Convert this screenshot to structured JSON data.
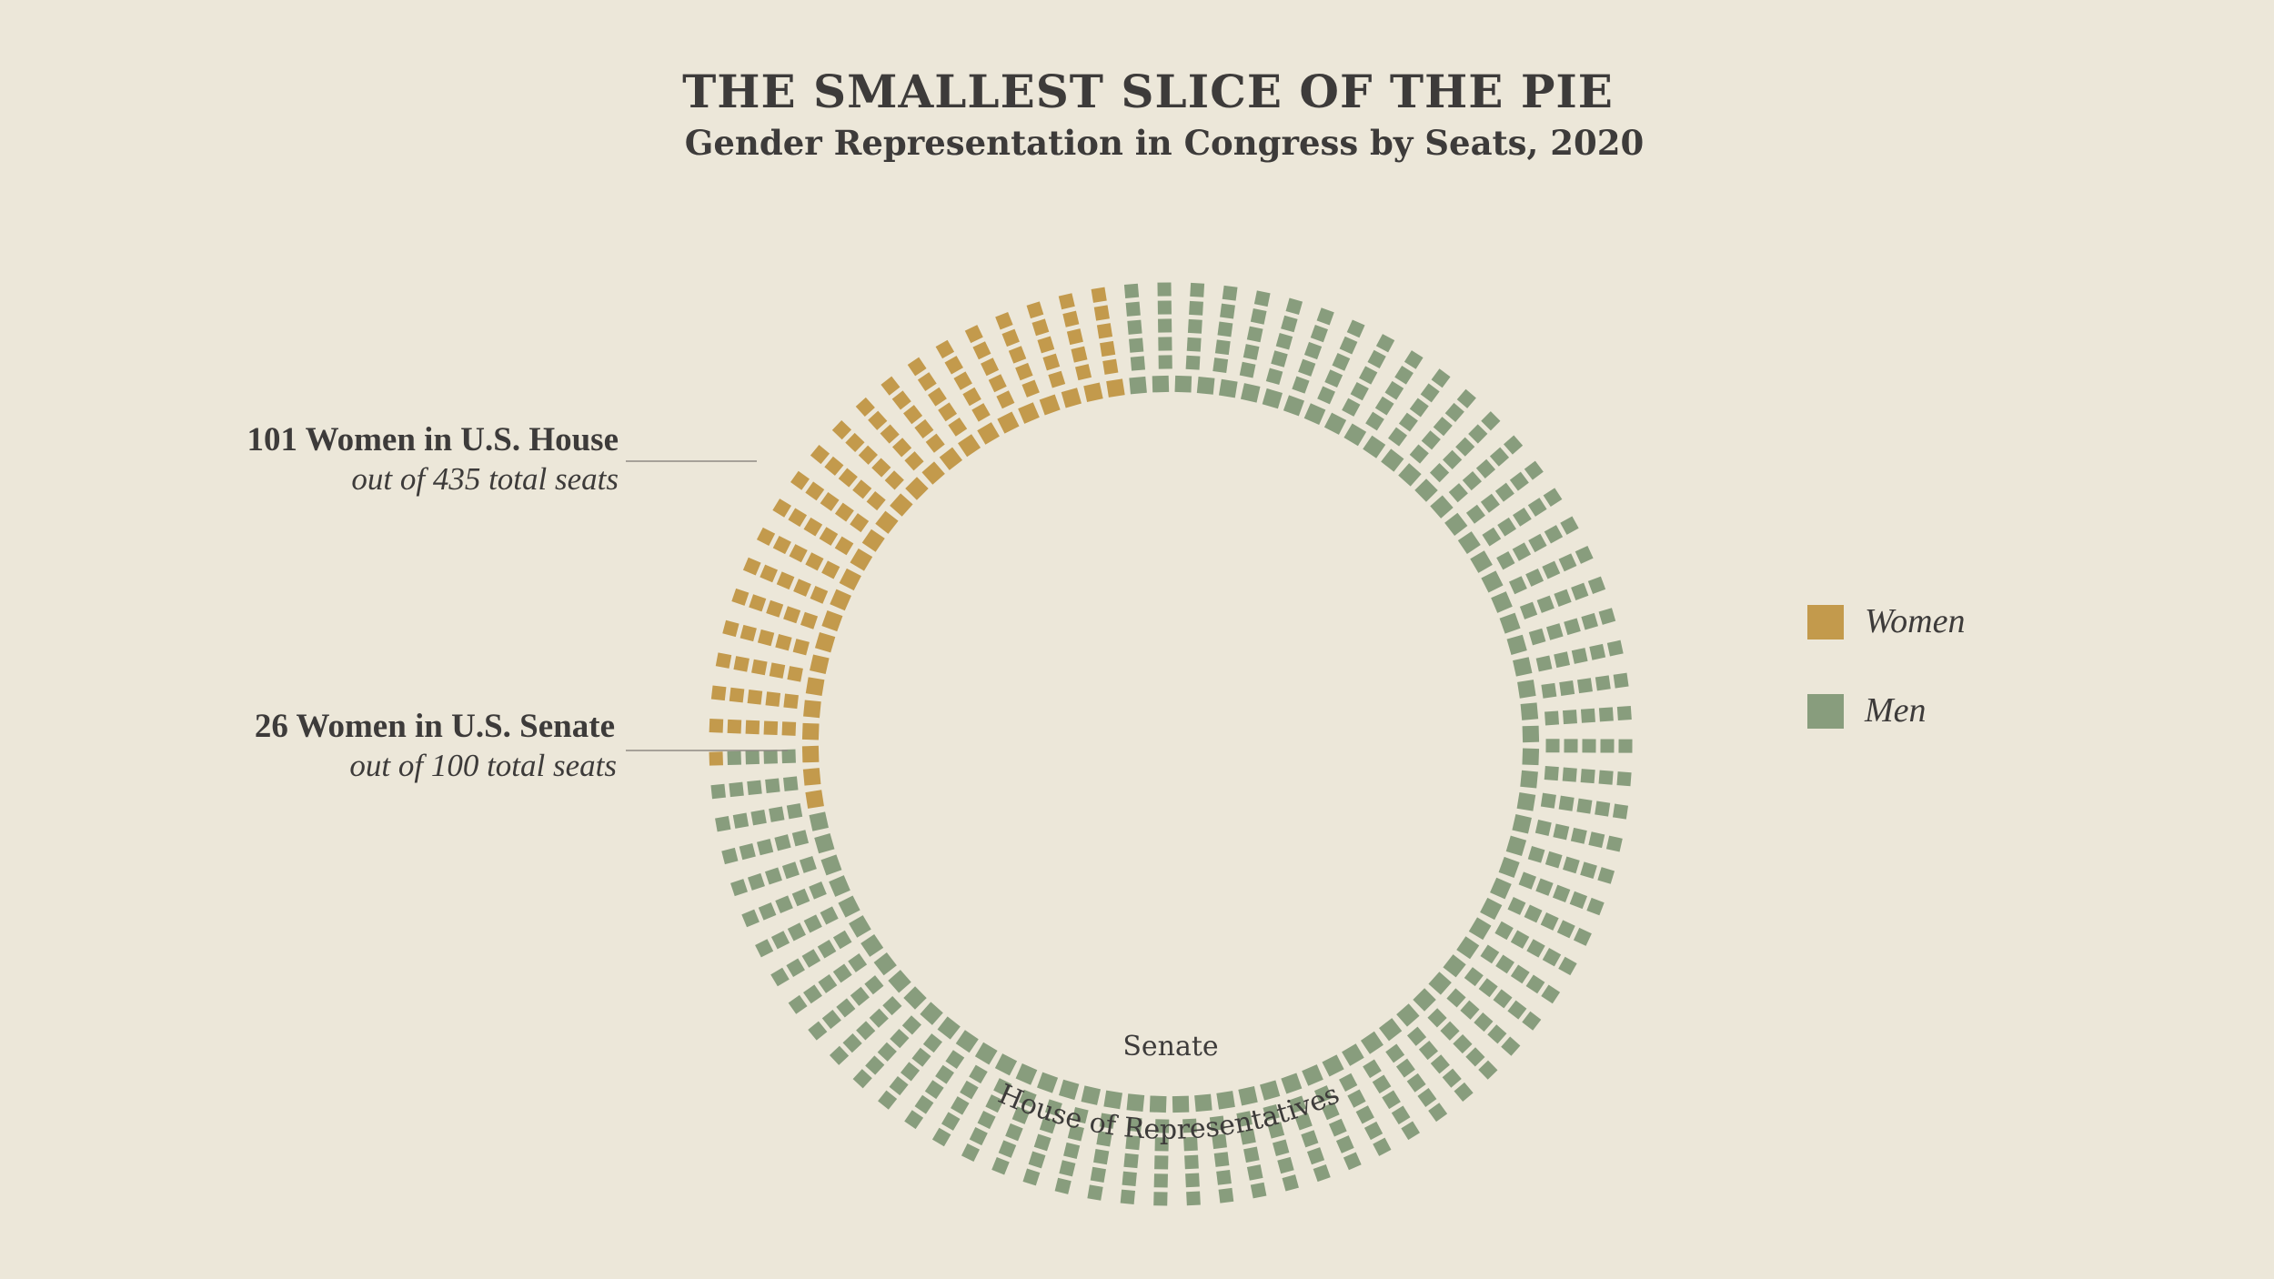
{
  "chart_data": {
    "type": "waffle-donut",
    "title": "THE SMALLEST SLICE OF THE PIE",
    "subtitle": "Gender Representation in Congress by Seats, 2020",
    "series": [
      {
        "name": "House of Representatives",
        "total_seats": 435,
        "women": 101,
        "men": 334
      },
      {
        "name": "Senate",
        "total_seats": 100,
        "women": 26,
        "men": 74
      }
    ],
    "legend": [
      {
        "label": "Women",
        "color": "#C39A4C"
      },
      {
        "label": "Men",
        "color": "#889D7D"
      }
    ],
    "legend_position": "right",
    "annotations": {
      "house": {
        "headline": "101 Women in U.S. House",
        "detail": "out of 435 total seats"
      },
      "senate": {
        "headline": "26 Women in U.S. Senate",
        "detail": "out of 100 total seats"
      }
    },
    "ring_labels": {
      "senate": "Senate",
      "house": "House of Representatives"
    }
  }
}
